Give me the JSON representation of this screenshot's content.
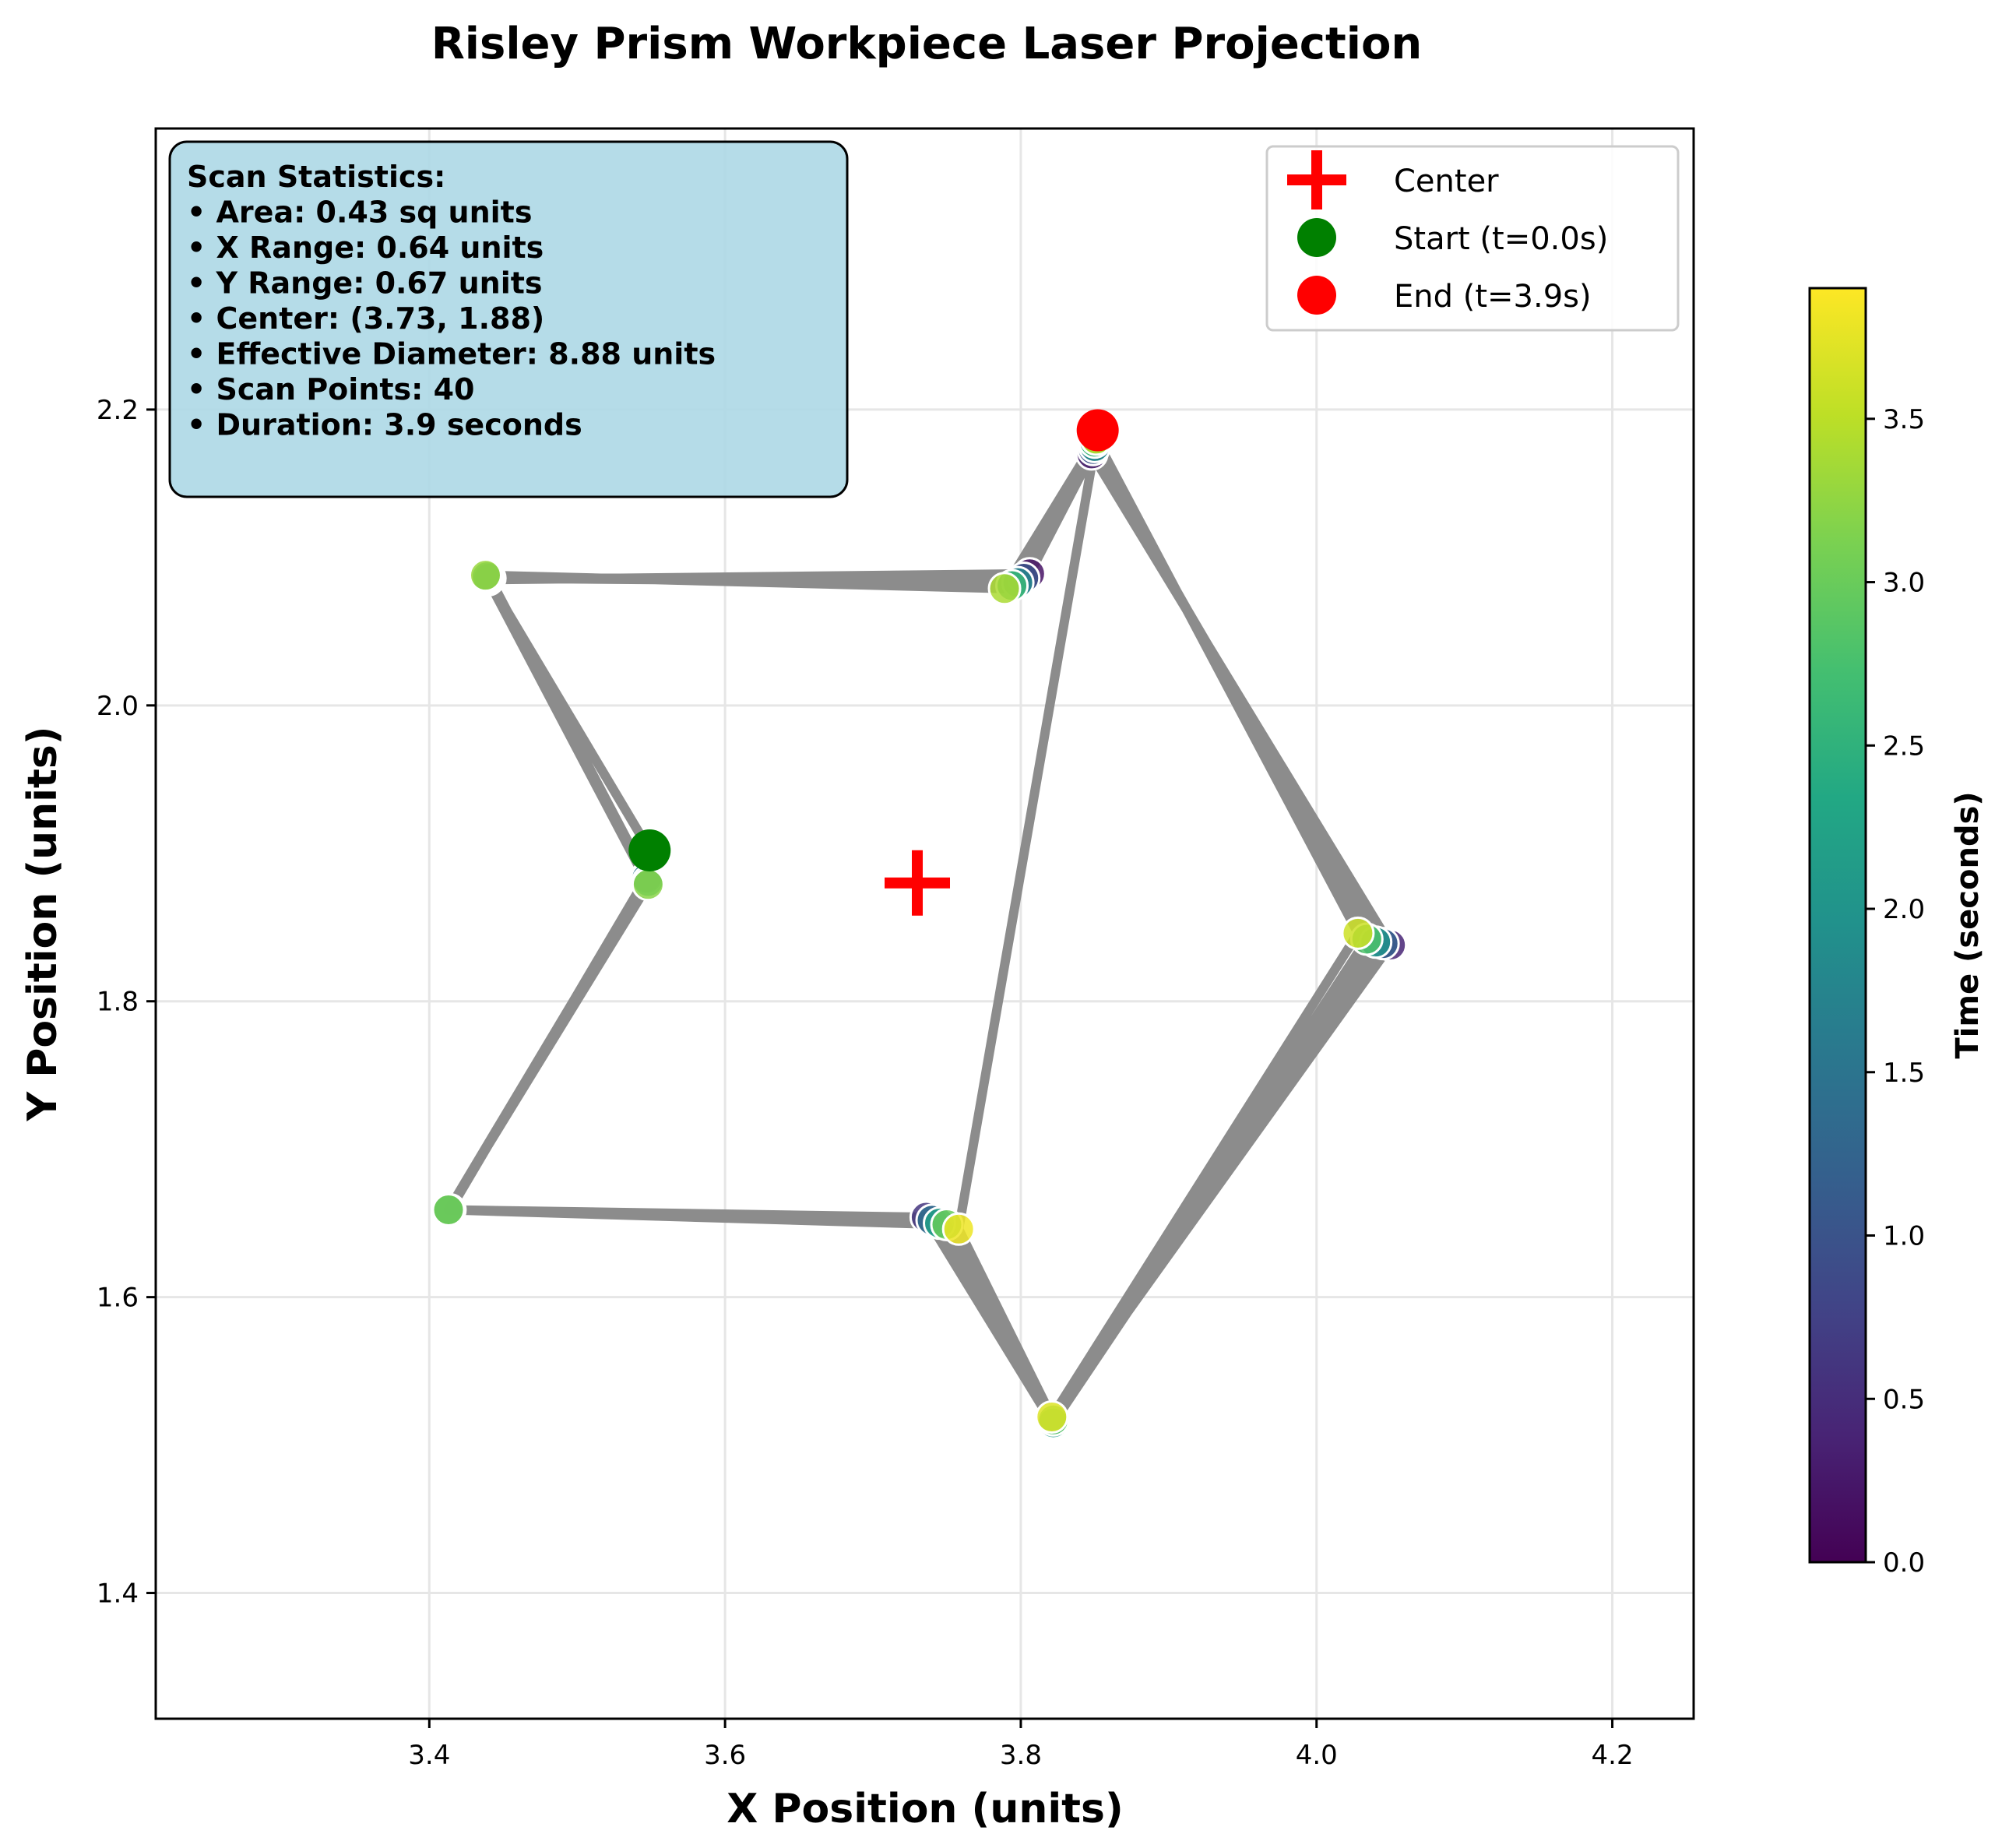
{
  "chart_data": {
    "type": "scatter",
    "title": "Risley Prism Workpiece Laser Projection",
    "xlabel": "X Position (units)",
    "ylabel": "Y Position (units)",
    "xlim": [
      3.215,
      4.255
    ],
    "ylim": [
      1.315,
      2.39
    ],
    "xticks": [
      3.4,
      3.6,
      3.8,
      4.0,
      4.2
    ],
    "xtick_labels": [
      "3.4",
      "3.6",
      "3.8",
      "4.0",
      "4.2"
    ],
    "yticks": [
      1.4,
      1.6,
      1.8,
      2.0,
      2.2
    ],
    "ytick_labels": [
      "1.4",
      "1.6",
      "1.8",
      "2.0",
      "2.2"
    ],
    "grid": true,
    "colorbar": {
      "label": "Time (seconds)",
      "range": [
        0.0,
        3.9
      ],
      "ticks": [
        0.0,
        0.5,
        1.0,
        1.5,
        2.0,
        2.5,
        3.0,
        3.5
      ],
      "tick_labels": [
        "0.0",
        "0.5",
        "1.0",
        "1.5",
        "2.0",
        "2.5",
        "3.0",
        "3.5"
      ],
      "colormap": "viridis"
    },
    "scan_points": {
      "t": [
        0.0,
        0.1,
        0.2,
        0.3,
        0.4,
        0.5,
        0.6,
        0.7,
        0.8,
        0.9,
        1.0,
        1.1,
        1.2,
        1.3,
        1.4,
        1.5,
        1.6,
        1.7,
        1.8,
        1.9,
        2.0,
        2.1,
        2.2,
        2.3,
        2.4,
        2.5,
        2.6,
        2.7,
        2.8,
        2.9,
        3.0,
        3.1,
        3.2,
        3.3,
        3.4,
        3.5,
        3.6,
        3.7,
        3.8,
        3.9
      ],
      "x": [
        3.549,
        3.44,
        3.806,
        3.848,
        4.05,
        3.82,
        3.736,
        3.414,
        3.547,
        3.441,
        3.802,
        3.849,
        4.045,
        3.821,
        3.74,
        3.413,
        3.547,
        3.44,
        3.798,
        3.85,
        4.04,
        3.822,
        3.745,
        3.413,
        3.548,
        3.439,
        3.794,
        3.85,
        4.034,
        3.822,
        3.75,
        3.413,
        3.548,
        3.438,
        3.789,
        3.851,
        4.028,
        3.821,
        3.758,
        3.852
      ],
      "y": [
        1.902,
        2.085,
        2.089,
        2.17,
        1.838,
        1.517,
        1.654,
        1.659,
        1.884,
        2.086,
        2.086,
        2.173,
        1.839,
        1.516,
        1.652,
        1.659,
        1.883,
        2.086,
        2.083,
        2.175,
        1.84,
        1.515,
        1.65,
        1.659,
        1.881,
        2.087,
        2.081,
        2.178,
        1.842,
        1.517,
        1.649,
        1.659,
        1.879,
        2.088,
        2.079,
        2.18,
        1.846,
        1.519,
        1.646,
        2.186
      ]
    },
    "center": {
      "x": 3.73,
      "y": 1.88
    },
    "start": {
      "x": 3.549,
      "y": 1.902
    },
    "end": {
      "x": 3.852,
      "y": 2.186
    },
    "legend": {
      "placement": "top-right",
      "entries": [
        {
          "label": "Center",
          "marker": "plus",
          "color": "#ff0000"
        },
        {
          "label": "Start (t=0.0s)",
          "marker": "circle",
          "color": "#008000"
        },
        {
          "label": "End (t=3.9s)",
          "marker": "circle",
          "color": "#ff0000"
        }
      ]
    },
    "annotation": {
      "placement": "top-left",
      "lines": [
        "Scan Statistics:",
        "• Area: 0.43 sq units",
        "• X Range: 0.64 units",
        "• Y Range: 0.67 units",
        "• Center: (3.73, 1.88)",
        "• Effective Diameter: 8.88 units",
        "• Scan Points: 40",
        "• Duration: 3.9 seconds"
      ]
    },
    "colors": {
      "path": "#8c8c8c",
      "grid": "#e6e6e6",
      "stats_box_fill": "#add8e6",
      "axis": "#000000"
    }
  }
}
